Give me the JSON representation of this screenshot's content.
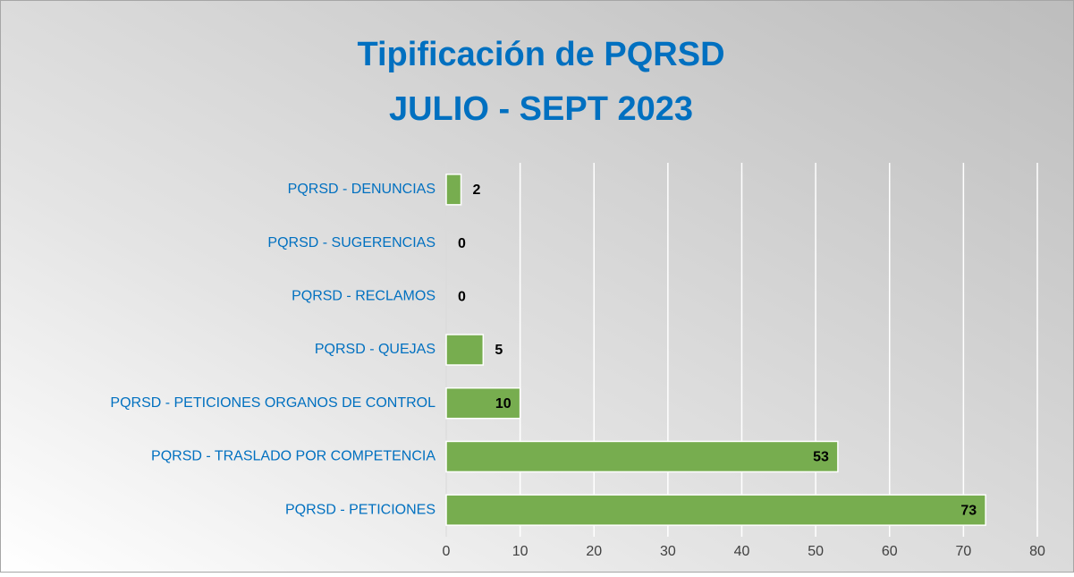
{
  "chart_data": {
    "type": "bar",
    "orientation": "horizontal",
    "title": "Tipificación de PQRSD",
    "subtitle": "JULIO - SEPT 2023",
    "categories": [
      "PQRSD - DENUNCIAS",
      "PQRSD - SUGERENCIAS",
      "PQRSD - RECLAMOS",
      "PQRSD - QUEJAS",
      "PQRSD - PETICIONES ORGANOS DE CONTROL",
      "PQRSD - TRASLADO POR COMPETENCIA",
      "PQRSD - PETICIONES"
    ],
    "values": [
      2,
      0,
      0,
      5,
      10,
      53,
      73
    ],
    "color": "#77ad4f",
    "xlim": [
      0,
      80
    ],
    "xticks": [
      0,
      10,
      20,
      30,
      40,
      50,
      60,
      70,
      80
    ],
    "grid": true
  }
}
